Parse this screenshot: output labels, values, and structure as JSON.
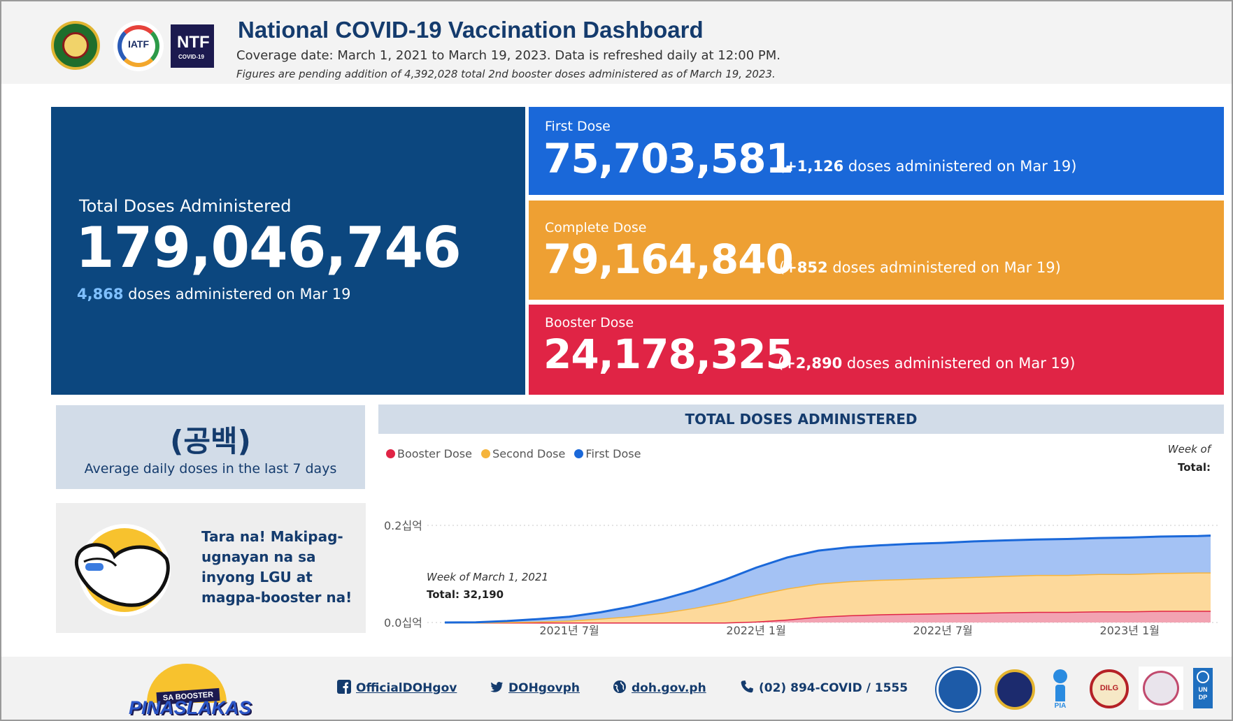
{
  "header": {
    "title": "National COVID-19 Vaccination Dashboard",
    "coverage": "Coverage date: March 1, 2021 to March 19, 2023. Data is refreshed daily at 12:00 PM.",
    "pending_note": "Figures are pending addition of 4,392,028 total 2nd booster doses administered as of March 19, 2023.",
    "logos": {
      "iatf": "IATF",
      "ntf_big": "NTF",
      "ntf_small": "COVID-19"
    }
  },
  "total": {
    "label": "Total Doses Administered",
    "value": "179,046,746",
    "daily": "4,868",
    "daily_suffix": "doses administered on Mar 19"
  },
  "first_dose": {
    "label": "First Dose",
    "value": "75,703,581",
    "delta_open": "(",
    "delta": "+1,126",
    "delta_suffix": "doses administered on Mar 19)"
  },
  "complete_dose": {
    "label": "Complete Dose",
    "value": "79,164,840",
    "delta_open": "(",
    "delta": "+852",
    "delta_suffix": "doses administered on Mar 19)"
  },
  "booster_dose": {
    "label": "Booster Dose",
    "value": "24,178,325",
    "delta_open": "(",
    "delta": "+2,890",
    "delta_suffix": "doses administered on Mar 19)"
  },
  "average": {
    "value": "(공백)",
    "caption": "Average daily doses in the last 7 days"
  },
  "promo": {
    "message": "Tara na! Makipag-ugnayan na sa inyong LGU at magpa-booster na!"
  },
  "chart": {
    "title": "TOTAL DOSES ADMINISTERED",
    "legend": [
      {
        "name": "Booster Dose",
        "color": "#e02445"
      },
      {
        "name": "Second Dose",
        "color": "#f5b43c"
      },
      {
        "name": "First Dose",
        "color": "#1a68d9"
      }
    ],
    "tooltip_top": {
      "week": "Week of",
      "total": "Total:"
    },
    "tooltip_inline": {
      "week": "Week of March 1, 2021",
      "total": "Total: 32,190"
    }
  },
  "chart_data": {
    "type": "area",
    "title": "TOTAL DOSES ADMINISTERED",
    "xlabel": "",
    "ylabel": "",
    "y_unit_label": "십억",
    "ylim": [
      0,
      0.2
    ],
    "yticks": [
      "0.0십억",
      "0.2십억"
    ],
    "xticks": [
      {
        "label": "2021년 7월",
        "t": 4
      },
      {
        "label": "2022년 1월",
        "t": 10
      },
      {
        "label": "2022년 7월",
        "t": 16
      },
      {
        "label": "2023년 1월",
        "t": 22
      }
    ],
    "x": [
      0,
      1,
      2,
      3,
      4,
      5,
      6,
      7,
      8,
      9,
      10,
      11,
      12,
      13,
      14,
      15,
      16,
      17,
      18,
      19,
      20,
      21,
      22,
      23,
      24.2,
      24.6
    ],
    "x_note": "months since March 2021 (cumulative totals, billions)",
    "stacked": true,
    "series": [
      {
        "name": "Booster Dose",
        "color": "#e02445",
        "fill": "#f2a3b2",
        "values": [
          0,
          0,
          0,
          0,
          0,
          0,
          0,
          0,
          0,
          0,
          0.002,
          0.006,
          0.012,
          0.015,
          0.017,
          0.018,
          0.019,
          0.02,
          0.021,
          0.022,
          0.022,
          0.023,
          0.023,
          0.024,
          0.024,
          0.024
        ]
      },
      {
        "name": "Second Dose",
        "color": "#f5b43c",
        "fill": "#fdd99b",
        "values": [
          0,
          0,
          0.001,
          0.002,
          0.004,
          0.008,
          0.013,
          0.02,
          0.03,
          0.042,
          0.055,
          0.064,
          0.068,
          0.07,
          0.071,
          0.072,
          0.073,
          0.074,
          0.075,
          0.076,
          0.076,
          0.077,
          0.077,
          0.078,
          0.079,
          0.079
        ]
      },
      {
        "name": "First Dose",
        "color": "#1a68d9",
        "fill": "#a4c2f4",
        "values": [
          3e-05,
          0.0005,
          0.002,
          0.005,
          0.008,
          0.013,
          0.02,
          0.028,
          0.036,
          0.046,
          0.056,
          0.064,
          0.068,
          0.07,
          0.071,
          0.072,
          0.072,
          0.073,
          0.073,
          0.073,
          0.074,
          0.074,
          0.075,
          0.075,
          0.075,
          0.076
        ]
      }
    ]
  },
  "footer": {
    "brand_top": "SA BOOSTER",
    "brand_word": "PINASLAKAS",
    "facebook": "OfficialDOHgov",
    "twitter": "DOHgovph",
    "website": "doh.gov.ph",
    "phone": "(02) 894-COVID / 1555",
    "seals": {
      "dilg": "DILG",
      "pia": "PIA",
      "undp": "UNDP"
    }
  }
}
